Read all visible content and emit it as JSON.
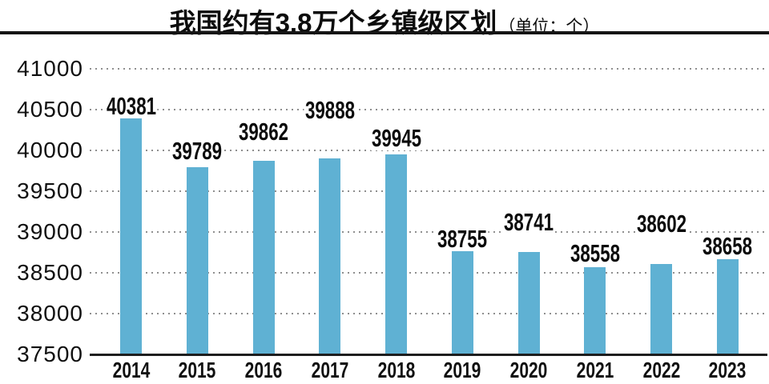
{
  "title": {
    "main": "我国约有3.8万个乡镇级区划",
    "unit": "（单位：个）"
  },
  "colors": {
    "bar": "#5fb1d3",
    "grid_dot": "#8f8f8f",
    "axis_line": "#1e1e1e",
    "title_rule": "#141414",
    "text": "#0e0e0e"
  },
  "chart_data": {
    "type": "bar",
    "title": "我国约有3.8万个乡镇级区划（单位：个）",
    "unit_label": "个",
    "categories": [
      "2014",
      "2015",
      "2016",
      "2017",
      "2018",
      "2019",
      "2020",
      "2021",
      "2022",
      "2023"
    ],
    "values": [
      40381,
      39789,
      39862,
      39888,
      39945,
      38755,
      38741,
      38558,
      38602,
      38658
    ],
    "value_labels_shown": true,
    "value_label_gaps": [
      5,
      10,
      26,
      50,
      10,
      4,
      27,
      7,
      40,
      6
    ],
    "xlabel": "",
    "ylabel": "",
    "ylim": [
      37500,
      41000
    ],
    "yticks": [
      41000,
      40500,
      40000,
      39500,
      39000,
      38500,
      38000,
      37500
    ],
    "grid": "dotted-horizontal",
    "legend": "none",
    "bar_color": "#5fb1d3"
  }
}
